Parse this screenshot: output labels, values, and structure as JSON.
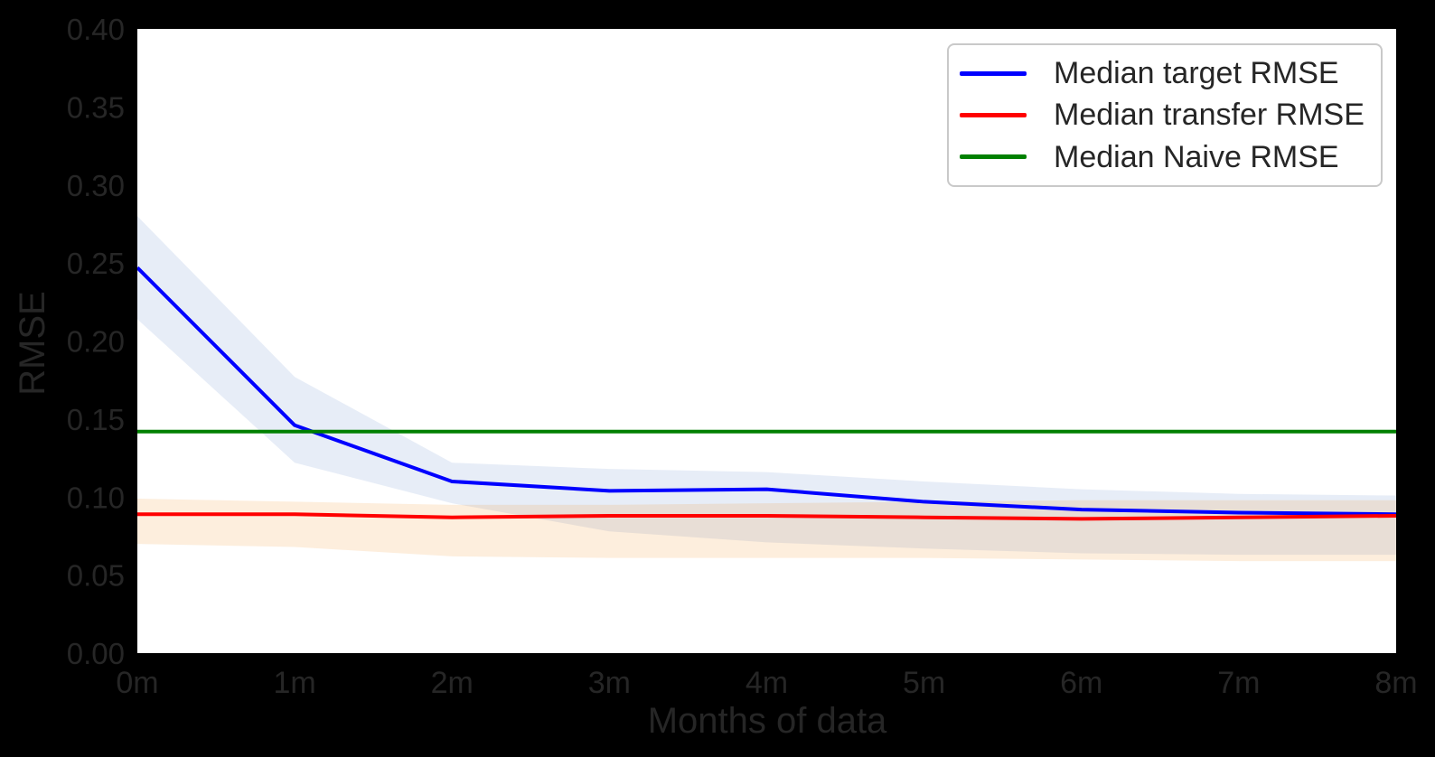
{
  "figure": {
    "background": "#000000",
    "plot_background": "#ffffff",
    "text_color": "#262626",
    "legend": {
      "background": "#ffffff",
      "border_color": "#c9c9c9"
    }
  },
  "chart_data": {
    "type": "line",
    "title": "",
    "xlabel": "Months of data",
    "ylabel": "RMSE",
    "x": [
      0,
      1,
      2,
      3,
      4,
      5,
      6,
      7,
      8
    ],
    "x_tick_labels": [
      "0m",
      "1m",
      "2m",
      "3m",
      "4m",
      "5m",
      "6m",
      "7m",
      "8m"
    ],
    "ylim": [
      0.0,
      0.4
    ],
    "ytick_labels": [
      "0.00",
      "0.05",
      "0.10",
      "0.15",
      "0.20",
      "0.25",
      "0.30",
      "0.35",
      "0.40"
    ],
    "grid": false,
    "legend_position": "upper right",
    "series": [
      {
        "name": "Median target RMSE",
        "color": "#0000ff",
        "values": [
          0.247,
          0.146,
          0.11,
          0.104,
          0.105,
          0.097,
          0.092,
          0.09,
          0.089
        ],
        "band_high": [
          0.28,
          0.177,
          0.122,
          0.118,
          0.116,
          0.11,
          0.105,
          0.102,
          0.101
        ],
        "band_low": [
          0.214,
          0.122,
          0.096,
          0.078,
          0.071,
          0.067,
          0.064,
          0.063,
          0.063
        ],
        "band_color": "rgba(70, 117, 194, 0.13)"
      },
      {
        "name": "Median transfer RMSE",
        "color": "#ff0000",
        "values": [
          0.089,
          0.089,
          0.087,
          0.088,
          0.088,
          0.087,
          0.086,
          0.087,
          0.088
        ],
        "band_high": [
          0.099,
          0.097,
          0.095,
          0.095,
          0.096,
          0.097,
          0.098,
          0.098,
          0.098
        ],
        "band_low": [
          0.07,
          0.068,
          0.062,
          0.061,
          0.061,
          0.061,
          0.06,
          0.059,
          0.059
        ],
        "band_color": "rgba(240, 133, 12, 0.14)"
      },
      {
        "name": "Median Naive RMSE",
        "color": "#008000",
        "values": [
          0.142,
          0.142,
          0.142,
          0.142,
          0.142,
          0.142,
          0.142,
          0.142,
          0.142
        ]
      }
    ]
  }
}
